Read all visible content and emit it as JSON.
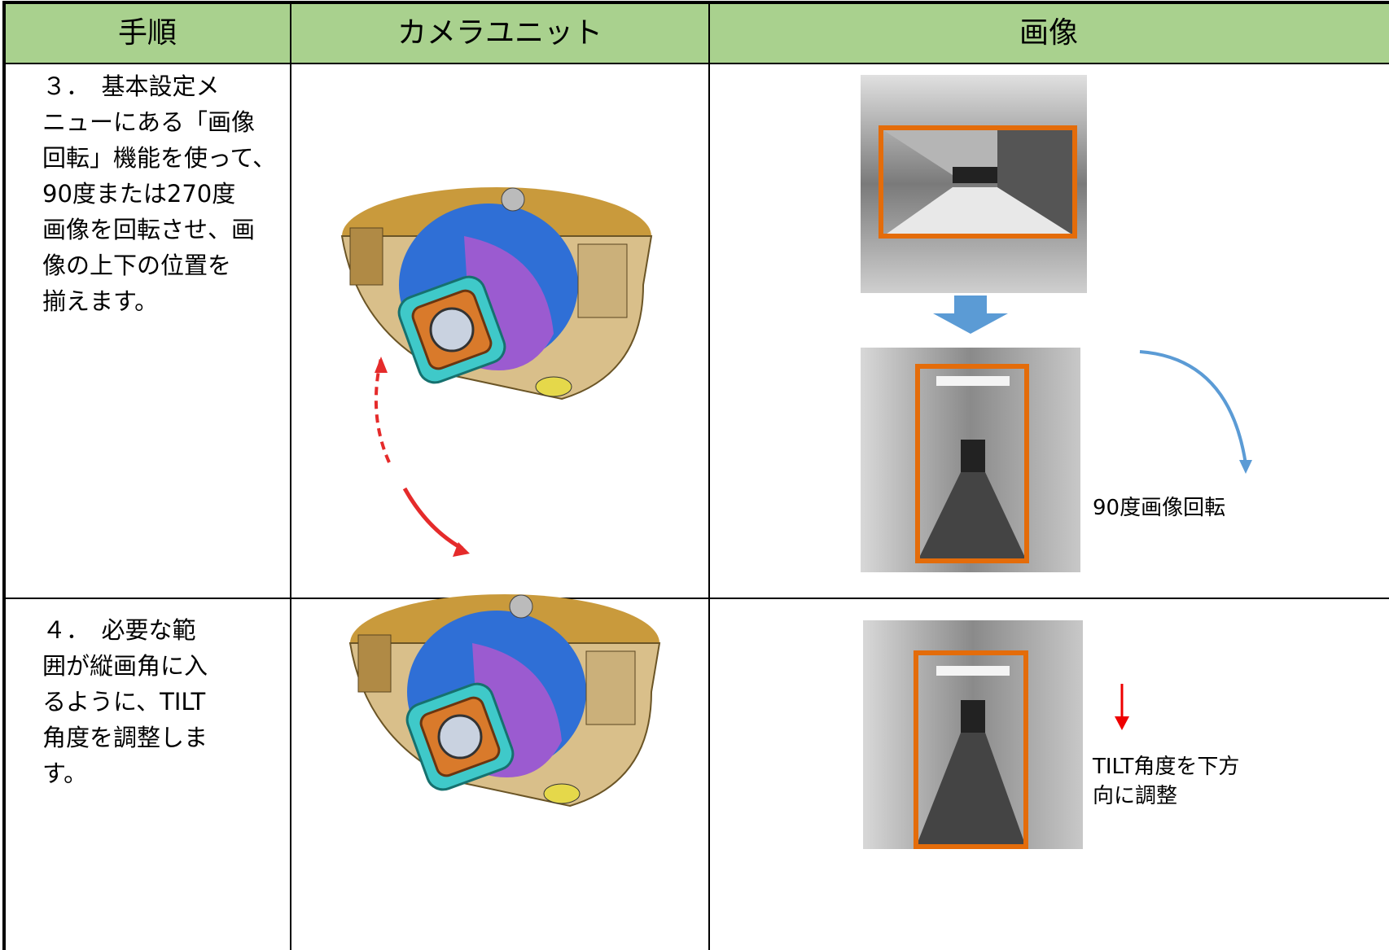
{
  "table": {
    "header": [
      "手順",
      "カメラユニット",
      "画像"
    ],
    "rows": [
      {
        "step": [
          "３．　基本設定メ",
          "ニューにある「画像",
          "回転」機能を使って、",
          "90度または270度",
          "画像を回転させ、画",
          "像の上下の位置を",
          "揃えます。"
        ],
        "note": [
          "90度画像回転"
        ]
      },
      {
        "step": [
          "４．　必要な範",
          "囲が縦画角に入",
          "るように、TILT",
          "角度を調整しま",
          "す。"
        ],
        "note": [
          "TILT角度を下方",
          "向に調整"
        ]
      }
    ]
  }
}
